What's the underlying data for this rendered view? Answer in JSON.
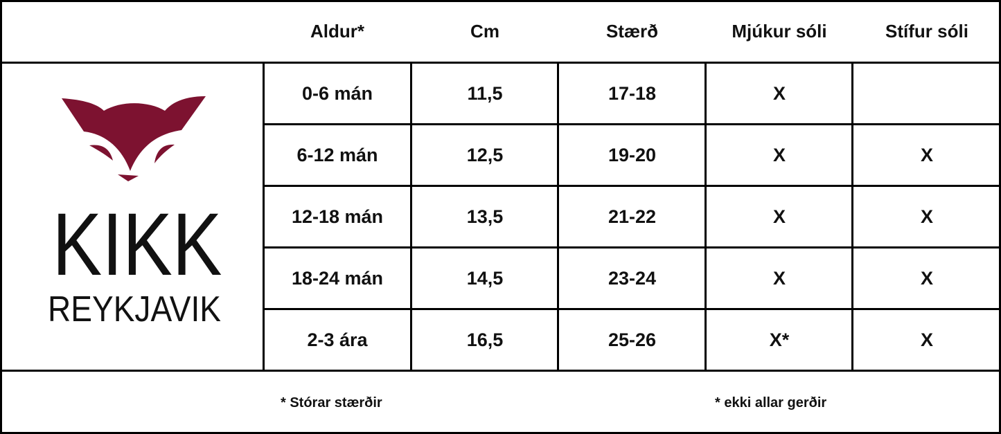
{
  "headers": [
    "Aldur*",
    "Cm",
    "Stærð",
    "Mjúkur sóli",
    "Stífur sóli"
  ],
  "rows": [
    [
      "0-6 mán",
      "11,5",
      "17-18",
      "X",
      ""
    ],
    [
      "6-12 mán",
      "12,5",
      "19-20",
      "X",
      "X"
    ],
    [
      "12-18 mán",
      "13,5",
      "21-22",
      "X",
      "X"
    ],
    [
      "18-24 mán",
      "14,5",
      "23-24",
      "X",
      "X"
    ],
    [
      "2-3 ára",
      "16,5",
      "25-26",
      "X*",
      "X"
    ]
  ],
  "logo": {
    "name": "KIKK",
    "sub": "REYKJAVIK",
    "color": "#7d1230"
  },
  "footnotes": [
    "* Stórar stærðir",
    "* ekki allar gerðir"
  ]
}
